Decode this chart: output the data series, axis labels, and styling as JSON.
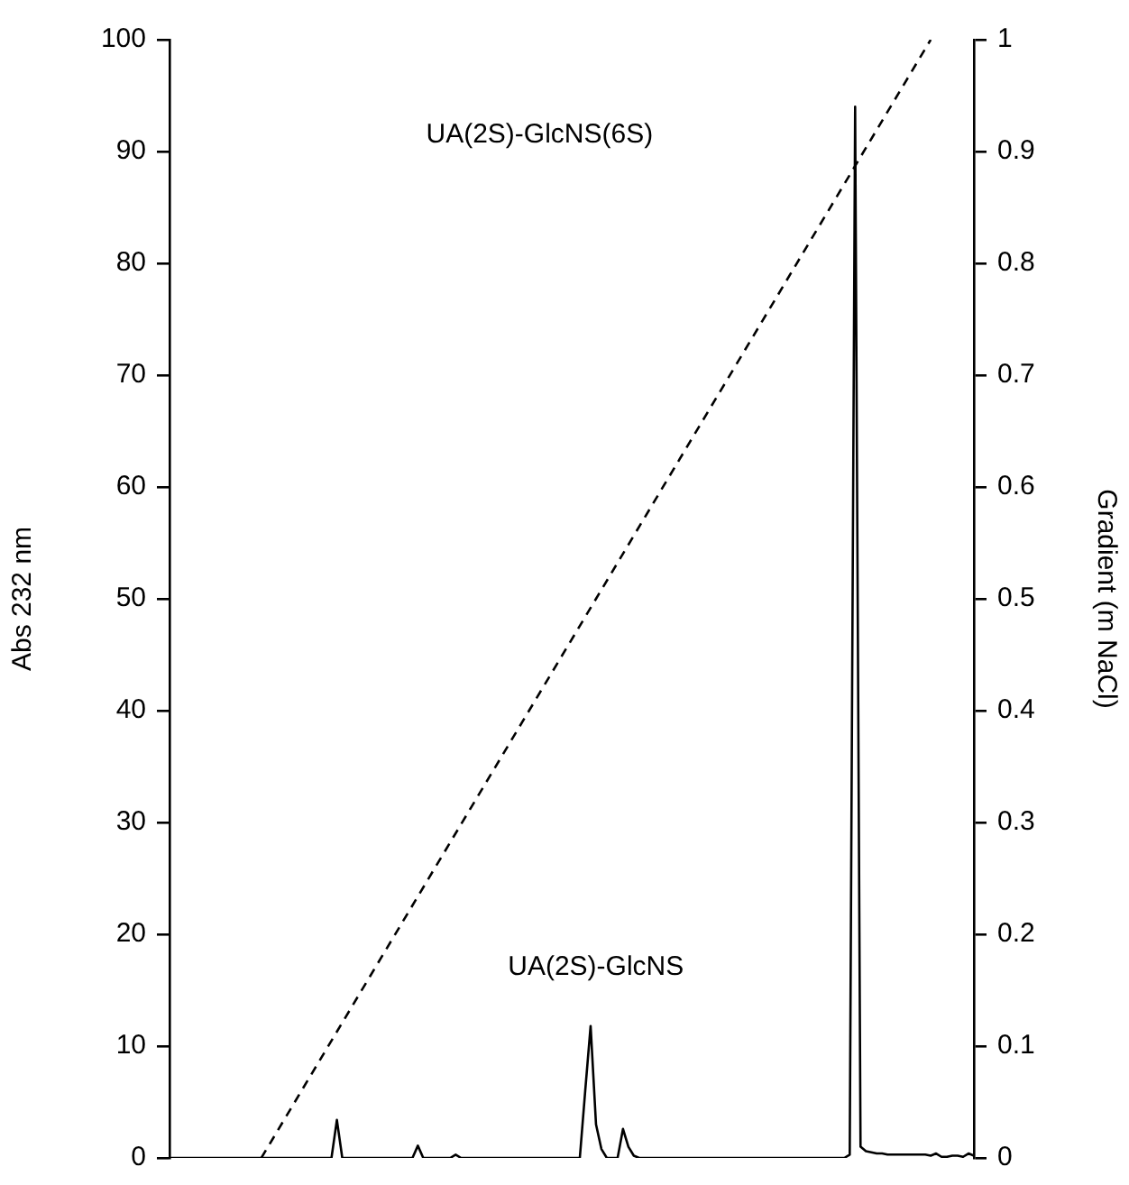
{
  "chart_data": {
    "type": "line",
    "ylabel": "Abs 232 nm",
    "y2label": "Gradient (m NaCl)",
    "categories": [
      null,
      null,
      null,
      null,
      null,
      null,
      null,
      null,
      null,
      null,
      null,
      null,
      null,
      null,
      null,
      null,
      null,
      null,
      null,
      null,
      null,
      null,
      null,
      null,
      null,
      null,
      null,
      null,
      null,
      null,
      null,
      null,
      null,
      null,
      null,
      null,
      null,
      null,
      null,
      null,
      null,
      null,
      null,
      null,
      null,
      null,
      null,
      null,
      null,
      null,
      null,
      null,
      null,
      null,
      null,
      null,
      null,
      null,
      null,
      null,
      null,
      null,
      null,
      null,
      null,
      null,
      null,
      null,
      null,
      null,
      null,
      null,
      null,
      null,
      null,
      null,
      null,
      null,
      null,
      null,
      null,
      null,
      null,
      null,
      null,
      null,
      null,
      null,
      null,
      null,
      null,
      null,
      null,
      null,
      null,
      null,
      null,
      null,
      null,
      null,
      null,
      null,
      null,
      null,
      null,
      null,
      null,
      null,
      null,
      null,
      null,
      null,
      null,
      null,
      null,
      null,
      null,
      null,
      null,
      null,
      null,
      null,
      null,
      null,
      null,
      null,
      null,
      null,
      null,
      null,
      null,
      null,
      null,
      null,
      null,
      null,
      null,
      null,
      null,
      null,
      null,
      null,
      null,
      null,
      null,
      null,
      null,
      null,
      null,
      null
    ],
    "series": [
      {
        "color": "#000000",
        "line_style": "solid",
        "values": [
          0,
          0,
          0,
          0,
          0,
          0,
          0,
          0,
          0,
          0,
          0,
          0,
          0,
          0,
          0,
          0,
          0,
          0,
          0,
          0,
          0,
          0,
          0,
          0,
          0,
          0,
          0,
          0,
          0,
          0,
          0,
          3.4,
          0,
          0,
          0,
          0,
          0,
          0,
          0,
          0,
          0,
          0,
          0,
          0,
          0,
          0,
          1.1,
          0,
          0,
          0,
          0,
          0,
          0,
          0.3,
          0,
          0,
          0,
          0,
          0,
          0,
          0,
          0,
          0,
          0,
          0,
          0,
          0,
          0,
          0,
          0,
          0,
          0,
          0,
          0,
          0,
          0,
          0,
          6,
          11.8,
          3,
          0.8,
          0,
          0,
          0,
          2.6,
          1,
          0.2,
          0,
          0,
          0,
          0,
          0,
          0,
          0,
          0,
          0,
          0,
          0,
          0,
          0,
          0,
          0,
          0,
          0,
          0,
          0,
          0,
          0,
          0,
          0,
          0,
          0,
          0,
          0,
          0,
          0,
          0,
          0,
          0,
          0,
          0,
          0,
          0,
          0,
          0,
          0,
          0.3,
          94,
          1,
          0.6,
          0.5,
          0.4,
          0.4,
          0.3,
          0.3,
          0.3,
          0.3,
          0.3,
          0.3,
          0.3,
          0.3,
          0.2,
          0.4,
          0.1,
          0.1,
          0.2,
          0.2,
          0.1,
          0.4,
          0.2
        ]
      },
      {
        "color": "#000000",
        "line_style": "dashed",
        "axis": "y2",
        "values": [
          null,
          null,
          null,
          null,
          null,
          null,
          null,
          null,
          null,
          null,
          null,
          null,
          null,
          null,
          null,
          null,
          null,
          0,
          null,
          null,
          null,
          null,
          null,
          null,
          null,
          null,
          null,
          null,
          null,
          null,
          null,
          null,
          null,
          null,
          null,
          null,
          null,
          null,
          null,
          null,
          null,
          null,
          null,
          null,
          null,
          null,
          null,
          null,
          null,
          null,
          null,
          null,
          null,
          null,
          null,
          null,
          null,
          null,
          null,
          null,
          null,
          null,
          null,
          null,
          null,
          null,
          null,
          null,
          null,
          null,
          null,
          null,
          null,
          null,
          null,
          null,
          null,
          null,
          null,
          null,
          null,
          null,
          null,
          null,
          null,
          null,
          null,
          null,
          null,
          null,
          null,
          null,
          null,
          null,
          null,
          null,
          null,
          null,
          null,
          null,
          null,
          null,
          null,
          null,
          null,
          null,
          null,
          null,
          null,
          null,
          null,
          null,
          null,
          null,
          null,
          null,
          null,
          null,
          null,
          null,
          null,
          null,
          null,
          null,
          null,
          null,
          null,
          null,
          null,
          null,
          null,
          null,
          null,
          null,
          null,
          null,
          null,
          null,
          null,
          null,
          null,
          1,
          null,
          null,
          null,
          null,
          null,
          null,
          null,
          null
        ]
      }
    ],
    "ylim": [
      0,
      100
    ],
    "yticks": [
      0,
      10,
      20,
      30,
      40,
      50,
      60,
      70,
      80,
      90,
      100
    ],
    "y2lim": [
      0,
      1
    ],
    "y2ticks": [
      0,
      0.1,
      0.2,
      0.3,
      0.4,
      0.5,
      0.6,
      0.7,
      0.8,
      0.9,
      1
    ],
    "marker": "none",
    "grid": false,
    "legend": false,
    "annotations": [
      "UA(2S)-GlcNS(6S)",
      "UA(2S)-GlcNS"
    ]
  }
}
